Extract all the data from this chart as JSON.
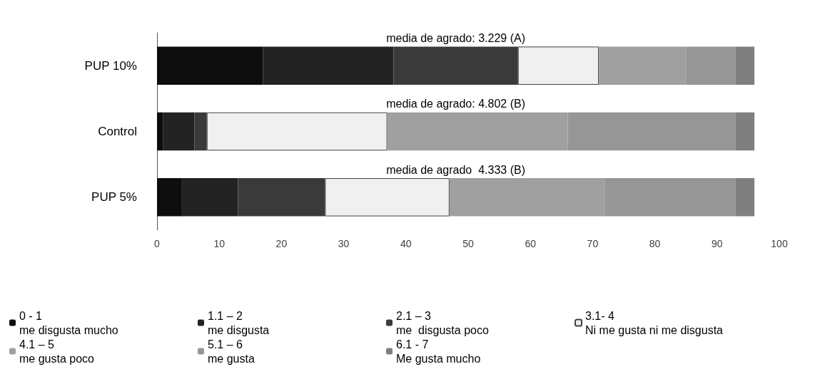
{
  "chart_data": {
    "type": "bar",
    "orientation": "horizontal",
    "stacked": true,
    "categories": [
      "PUP 10%",
      "Control",
      "PUP 5%"
    ],
    "series": [
      {
        "name": "0 - 1\nme disgusta mucho",
        "color": "#0d0d0d",
        "values": [
          17,
          1,
          4
        ]
      },
      {
        "name": "1.1 – 2\nme disgusta",
        "color": "#232323",
        "values": [
          21,
          5,
          9
        ]
      },
      {
        "name": "2.1 – 3\nme  disgusta poco",
        "color": "#3a3a3a",
        "values": [
          20,
          2,
          14
        ]
      },
      {
        "name": "3.1- 4\nNi me gusta ni me disgusta",
        "color": "#f0f0f0",
        "values": [
          13,
          29,
          20
        ]
      },
      {
        "name": "4.1 – 5\nme gusta poco",
        "color": "#a0a0a0",
        "values": [
          14,
          29,
          25
        ]
      },
      {
        "name": "5.1 – 6\nme gusta",
        "color": "#969696",
        "values": [
          8,
          27,
          21
        ]
      },
      {
        "name": "6.1 - 7\nMe gusta mucho",
        "color": "#7f7f7f",
        "values": [
          3,
          3,
          3
        ]
      }
    ],
    "xlim": [
      0,
      100
    ],
    "xticks": [
      0,
      10,
      20,
      30,
      40,
      50,
      60,
      70,
      80,
      90,
      100
    ],
    "annotations": [
      "media de agrado: 3.229 (A)",
      "media de agrado: 4.802 (B)",
      "media de agrado  4.333 (B)"
    ],
    "grid": false,
    "legend": "bottom"
  }
}
